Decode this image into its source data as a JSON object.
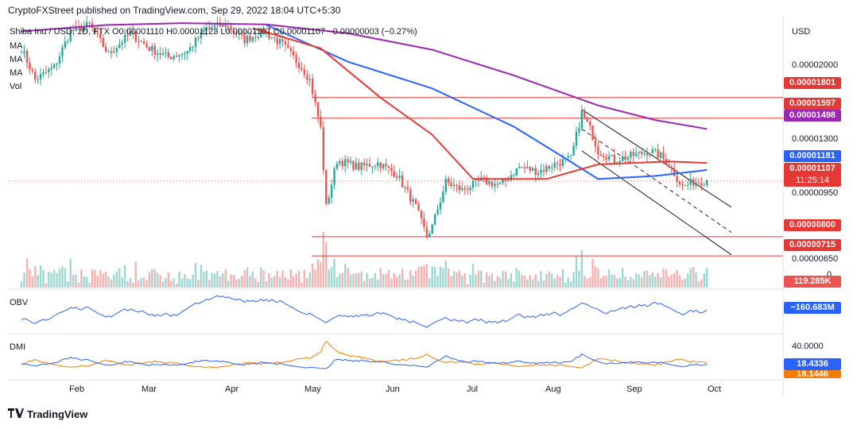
{
  "header": {
    "published": "CryptoFXStreet published on TradingView.com, Sep 29, 2022 18:04 UTC+5:30",
    "symbol_line": "Shiba Inu / USD, 1D, FTX  O0.00001110  H0.00001123  L0.00001107  C0.00001107  −0.00000003 (−0.27%)"
  },
  "legend": {
    "ma1": "MA",
    "ma2": "MA",
    "ma3": "MA",
    "vol": "Vol",
    "obv": "OBV",
    "dmi": "DMI"
  },
  "footer": {
    "brand": "TradingView",
    "logo_icon": "tradingview-logo-icon"
  },
  "price_axis": {
    "currency": "USD",
    "ticks": [
      "0.00002000",
      "0.00001300",
      "0.00000950",
      "0.00000650"
    ],
    "volume_tick": "0"
  },
  "badges": [
    {
      "text": "0.00001801",
      "color": "#e53935"
    },
    {
      "text": "0.00001597",
      "color": "#e53935"
    },
    {
      "text": "0.00001498",
      "color": "#9c27b0"
    },
    {
      "text": "0.00001181",
      "color": "#2962ff"
    },
    {
      "text": "0.00001107",
      "color": "#e53935"
    },
    {
      "text": "11:25:14",
      "color": "#e53935"
    },
    {
      "text": "0.00000800",
      "color": "#e53935"
    },
    {
      "text": "0.00000715",
      "color": "#e53935"
    },
    {
      "text": "119.285K",
      "color": "#ef5350"
    },
    {
      "text": "−160.683M",
      "color": "#2962ff"
    },
    {
      "text": "18.4336",
      "color": "#2962ff"
    },
    {
      "text": "18.1446",
      "color": "#f57c00"
    }
  ],
  "dmi_axis": {
    "tick": "40.0000"
  },
  "x_axis": {
    "labels": [
      "Feb",
      "Mar",
      "Apr",
      "May",
      "Jun",
      "Jul",
      "Aug",
      "Sep",
      "Oct"
    ]
  },
  "chart_data": {
    "type": "candlestick",
    "symbol": "SHIB/USD",
    "timeframe": "1D",
    "exchange": "FTX",
    "colors": {
      "up": "#26a69a",
      "down": "#ef5350",
      "ma_red": "#e53935",
      "ma_blue": "#2962ff",
      "ma_purple": "#9c27b0",
      "obv": "#2962ff",
      "dmi_plus": "#2962ff",
      "dmi_minus": "#f57c00"
    },
    "price_series": [
      [
        "2022-01-20",
        2.4e-05
      ],
      [
        "2022-01-25",
        2e-05
      ],
      [
        "2022-02-01",
        2.15e-05
      ],
      [
        "2022-02-07",
        2.65e-05
      ],
      [
        "2022-02-14",
        2.75e-05
      ],
      [
        "2022-02-21",
        2.32e-05
      ],
      [
        "2022-03-01",
        2.62e-05
      ],
      [
        "2022-03-08",
        2.4e-05
      ],
      [
        "2022-03-15",
        2.28e-05
      ],
      [
        "2022-03-22",
        2.36e-05
      ],
      [
        "2022-03-29",
        2.7e-05
      ],
      [
        "2022-04-05",
        2.75e-05
      ],
      [
        "2022-04-12",
        2.52e-05
      ],
      [
        "2022-04-19",
        2.65e-05
      ],
      [
        "2022-04-26",
        2.45e-05
      ],
      [
        "2022-05-03",
        2.15e-05
      ],
      [
        "2022-05-06",
        2e-05
      ],
      [
        "2022-05-10",
        1.5e-05
      ],
      [
        "2022-05-12",
        9.5e-06
      ],
      [
        "2022-05-16",
        1.25e-05
      ],
      [
        "2022-05-24",
        1.2e-05
      ],
      [
        "2022-05-31",
        1.23e-05
      ],
      [
        "2022-06-07",
        1.15e-05
      ],
      [
        "2022-06-14",
        9.5e-06
      ],
      [
        "2022-06-18",
        8e-06
      ],
      [
        "2022-06-20",
        8.5e-06
      ],
      [
        "2022-06-25",
        1.1e-05
      ],
      [
        "2022-07-01",
        1.05e-05
      ],
      [
        "2022-07-08",
        1.11e-05
      ],
      [
        "2022-07-15",
        1.08e-05
      ],
      [
        "2022-07-22",
        1.2e-05
      ],
      [
        "2022-07-29",
        1.17e-05
      ],
      [
        "2022-08-05",
        1.23e-05
      ],
      [
        "2022-08-10",
        1.26e-05
      ],
      [
        "2022-08-14",
        1.65e-05
      ],
      [
        "2022-08-17",
        1.5e-05
      ],
      [
        "2022-08-20",
        1.32e-05
      ],
      [
        "2022-08-26",
        1.25e-05
      ],
      [
        "2022-09-01",
        1.28e-05
      ],
      [
        "2022-09-08",
        1.32e-05
      ],
      [
        "2022-09-12",
        1.28e-05
      ],
      [
        "2022-09-15",
        1.22e-05
      ],
      [
        "2022-09-20",
        1.07e-05
      ],
      [
        "2022-09-24",
        1.1e-05
      ],
      [
        "2022-09-29",
        1.11e-05
      ]
    ],
    "ma_red": [
      [
        "2022-04-15",
        2.7e-05
      ],
      [
        "2022-05-10",
        2.4e-05
      ],
      [
        "2022-06-01",
        1.8e-05
      ],
      [
        "2022-06-20",
        1.45e-05
      ],
      [
        "2022-07-05",
        1.12e-05
      ],
      [
        "2022-08-01",
        1.12e-05
      ],
      [
        "2022-08-20",
        1.22e-05
      ],
      [
        "2022-09-15",
        1.24e-05
      ],
      [
        "2022-09-29",
        1.23e-05
      ]
    ],
    "ma_blue": [
      [
        "2022-04-20",
        2.75e-05
      ],
      [
        "2022-05-20",
        2.22e-05
      ],
      [
        "2022-06-20",
        1.9e-05
      ],
      [
        "2022-07-20",
        1.52e-05
      ],
      [
        "2022-08-05",
        1.3e-05
      ],
      [
        "2022-08-20",
        1.12e-05
      ],
      [
        "2022-09-10",
        1.14e-05
      ],
      [
        "2022-09-29",
        1.18e-05
      ]
    ],
    "ma_purple": [
      [
        "2022-01-20",
        2.65e-05
      ],
      [
        "2022-02-20",
        2.75e-05
      ],
      [
        "2022-03-20",
        2.78e-05
      ],
      [
        "2022-04-20",
        2.76e-05
      ],
      [
        "2022-05-20",
        2.62e-05
      ],
      [
        "2022-06-20",
        2.38e-05
      ],
      [
        "2022-07-20",
        2.05e-05
      ],
      [
        "2022-08-20",
        1.72e-05
      ],
      [
        "2022-09-10",
        1.58e-05
      ],
      [
        "2022-09-29",
        1.5e-05
      ]
    ],
    "horizontal_levels": [
      1.801e-05,
      1.597e-05,
      8e-06,
      7.15e-06
    ],
    "channel": {
      "upper": [
        [
          "2022-08-14",
          1.68e-05
        ],
        [
          "2022-10-08",
          9.5e-06
        ]
      ],
      "middle": [
        [
          "2022-08-14",
          1.5e-05
        ],
        [
          "2022-10-08",
          8.2e-06
        ]
      ],
      "lower": [
        [
          "2022-08-14",
          1.32e-05
        ],
        [
          "2022-10-08",
          7.2e-06
        ]
      ]
    },
    "last_price": 1.107e-05,
    "volume_last": "119.285K",
    "obv_last": "−160.683M",
    "dmi_plus_last": 18.4336,
    "dmi_minus_last": 18.1446
  }
}
